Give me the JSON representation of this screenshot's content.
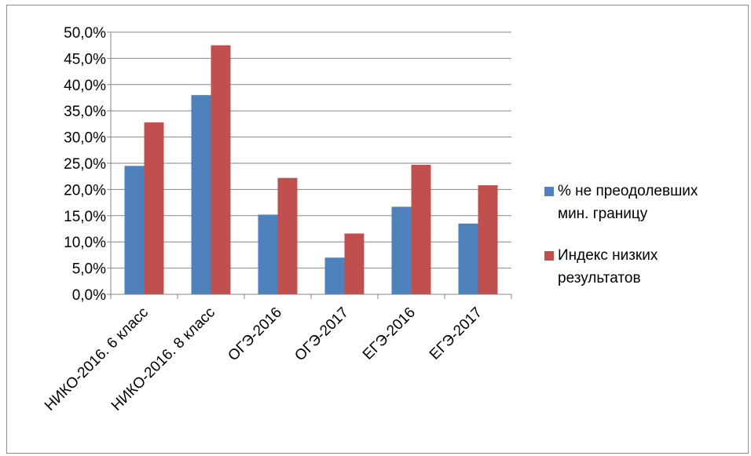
{
  "chart_data": {
    "type": "bar",
    "categories": [
      "НИКО-2016. 6 класс",
      "НИКО-2016. 8 класс",
      "ОГЭ-2016",
      "ОГЭ-2017",
      "ЕГЭ-2016",
      "ЕГЭ-2017"
    ],
    "series": [
      {
        "name": "% не преодолевших мин. границу",
        "color": "#4f81bd",
        "values": [
          24.5,
          38.0,
          15.2,
          7.0,
          16.7,
          13.5
        ]
      },
      {
        "name": "Индекс низких результатов",
        "color": "#c0504d",
        "values": [
          32.8,
          47.5,
          22.2,
          11.6,
          24.7,
          20.8
        ]
      }
    ],
    "ylim": [
      0,
      50
    ],
    "yticks": [
      "0,0%",
      "5,0%",
      "10,0%",
      "15,0%",
      "20,0%",
      "25,0%",
      "30,0%",
      "35,0%",
      "40,0%",
      "45,0%",
      "50,0%"
    ],
    "grid": true,
    "legend": "right",
    "legend_lines": [
      [
        "% не преодолевших",
        "мин. границу"
      ],
      [
        "Индекс низких",
        "результатов"
      ]
    ]
  }
}
